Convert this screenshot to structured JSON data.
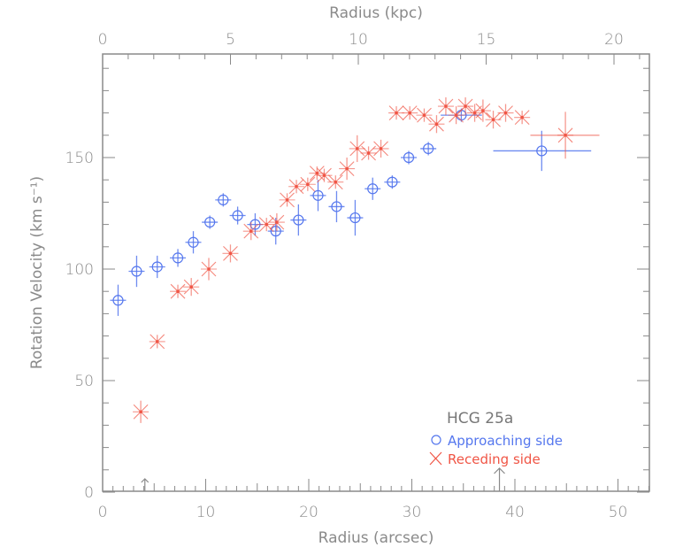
{
  "chart_data": {
    "type": "scatter",
    "title": "",
    "annotation": "HCG 25a",
    "xlabel": "Radius (arcsec)",
    "x2label": "Radius (kpc)",
    "ylabel": "Rotation Velocity (km s⁻¹)",
    "xlim": [
      0,
      53
    ],
    "x2lim": [
      0,
      21.3
    ],
    "ylim": [
      0,
      196
    ],
    "x_ticks": [
      0,
      10,
      20,
      30,
      40,
      50
    ],
    "x2_ticks": [
      0,
      5,
      10,
      15,
      20
    ],
    "y_ticks": [
      0,
      50,
      100,
      150
    ],
    "grid": false,
    "legend_position": "lower right",
    "colors": {
      "approaching": "#5577ee",
      "receding": "#f05545",
      "axis": "#8a8a8a"
    },
    "series": [
      {
        "name": "Approaching side",
        "marker": "circle",
        "points": [
          {
            "x": 1.5,
            "y": 86,
            "yerr": 7
          },
          {
            "x": 3.3,
            "y": 99,
            "yerr": 7
          },
          {
            "x": 5.3,
            "y": 101,
            "yerr": 5
          },
          {
            "x": 7.3,
            "y": 105,
            "yerr": 4
          },
          {
            "x": 8.8,
            "y": 112,
            "yerr": 5
          },
          {
            "x": 10.4,
            "y": 121,
            "yerr": 3
          },
          {
            "x": 11.7,
            "y": 131,
            "yerr": 3
          },
          {
            "x": 13.1,
            "y": 124,
            "yerr": 4
          },
          {
            "x": 14.8,
            "y": 120,
            "yerr": 5
          },
          {
            "x": 16.8,
            "y": 117,
            "yerr": 6
          },
          {
            "x": 19.0,
            "y": 122,
            "yerr": 7
          },
          {
            "x": 20.9,
            "y": 133,
            "yerr": 7
          },
          {
            "x": 22.7,
            "y": 128,
            "yerr": 7
          },
          {
            "x": 24.5,
            "y": 123,
            "yerr": 8
          },
          {
            "x": 26.2,
            "y": 136,
            "yerr": 5
          },
          {
            "x": 28.1,
            "y": 139,
            "yerr": 3
          },
          {
            "x": 29.7,
            "y": 150,
            "yerr": 3
          },
          {
            "x": 31.6,
            "y": 154,
            "yerr": 3
          },
          {
            "x": 34.8,
            "y": 169,
            "yerr": 3,
            "xerr": 2
          },
          {
            "x": 42.6,
            "y": 153,
            "yerr": 9,
            "xerr_low": 37.9,
            "xerr_high": 47.4
          }
        ]
      },
      {
        "name": "Receding side",
        "marker": "asterisk",
        "points": [
          {
            "x": 3.7,
            "y": 36,
            "yerr": 5
          },
          {
            "x": 5.3,
            "y": 67.5,
            "yerr": 3
          },
          {
            "x": 7.3,
            "y": 90,
            "yerr": 3
          },
          {
            "x": 8.6,
            "y": 92,
            "yerr": 4
          },
          {
            "x": 10.3,
            "y": 100,
            "yerr": 5
          },
          {
            "x": 12.4,
            "y": 107,
            "yerr": 4
          },
          {
            "x": 14.4,
            "y": 117,
            "yerr": 4
          },
          {
            "x": 15.9,
            "y": 120,
            "yerr": 3
          },
          {
            "x": 16.9,
            "y": 121,
            "yerr": 4
          },
          {
            "x": 17.9,
            "y": 131,
            "yerr": 3
          },
          {
            "x": 18.8,
            "y": 137,
            "yerr": 3
          },
          {
            "x": 19.9,
            "y": 138,
            "yerr": 3
          },
          {
            "x": 20.8,
            "y": 143,
            "yerr": 3
          },
          {
            "x": 21.5,
            "y": 142,
            "yerr": 3
          },
          {
            "x": 22.6,
            "y": 139,
            "yerr": 3
          },
          {
            "x": 23.7,
            "y": 145,
            "yerr": 5
          },
          {
            "x": 24.7,
            "y": 154,
            "yerr": 6
          },
          {
            "x": 25.8,
            "y": 152,
            "yerr": 3
          },
          {
            "x": 27.0,
            "y": 154,
            "yerr": 4
          },
          {
            "x": 28.5,
            "y": 170,
            "yerr": 3
          },
          {
            "x": 29.8,
            "y": 170,
            "yerr": 3
          },
          {
            "x": 31.2,
            "y": 169,
            "yerr": 3
          },
          {
            "x": 32.4,
            "y": 165,
            "yerr": 4
          },
          {
            "x": 33.3,
            "y": 173,
            "yerr": 4
          },
          {
            "x": 34.3,
            "y": 169,
            "yerr": 4
          },
          {
            "x": 35.2,
            "y": 173,
            "yerr": 4
          },
          {
            "x": 36.1,
            "y": 170,
            "yerr": 4
          },
          {
            "x": 36.9,
            "y": 171,
            "yerr": 5
          },
          {
            "x": 37.9,
            "y": 167,
            "yerr": 4
          },
          {
            "x": 39.1,
            "y": 170,
            "yerr": 4
          },
          {
            "x": 40.7,
            "y": 168,
            "yerr": 3
          },
          {
            "x": 44.9,
            "y": 160,
            "yerr": 10.5,
            "xerr_low": 41.5,
            "xerr_high": 48.2
          }
        ]
      }
    ],
    "markers": [
      {
        "type": "arrow-up",
        "x": 4.1,
        "size": "small"
      },
      {
        "type": "arrow-up",
        "x": 38.5,
        "size": "large"
      }
    ]
  }
}
